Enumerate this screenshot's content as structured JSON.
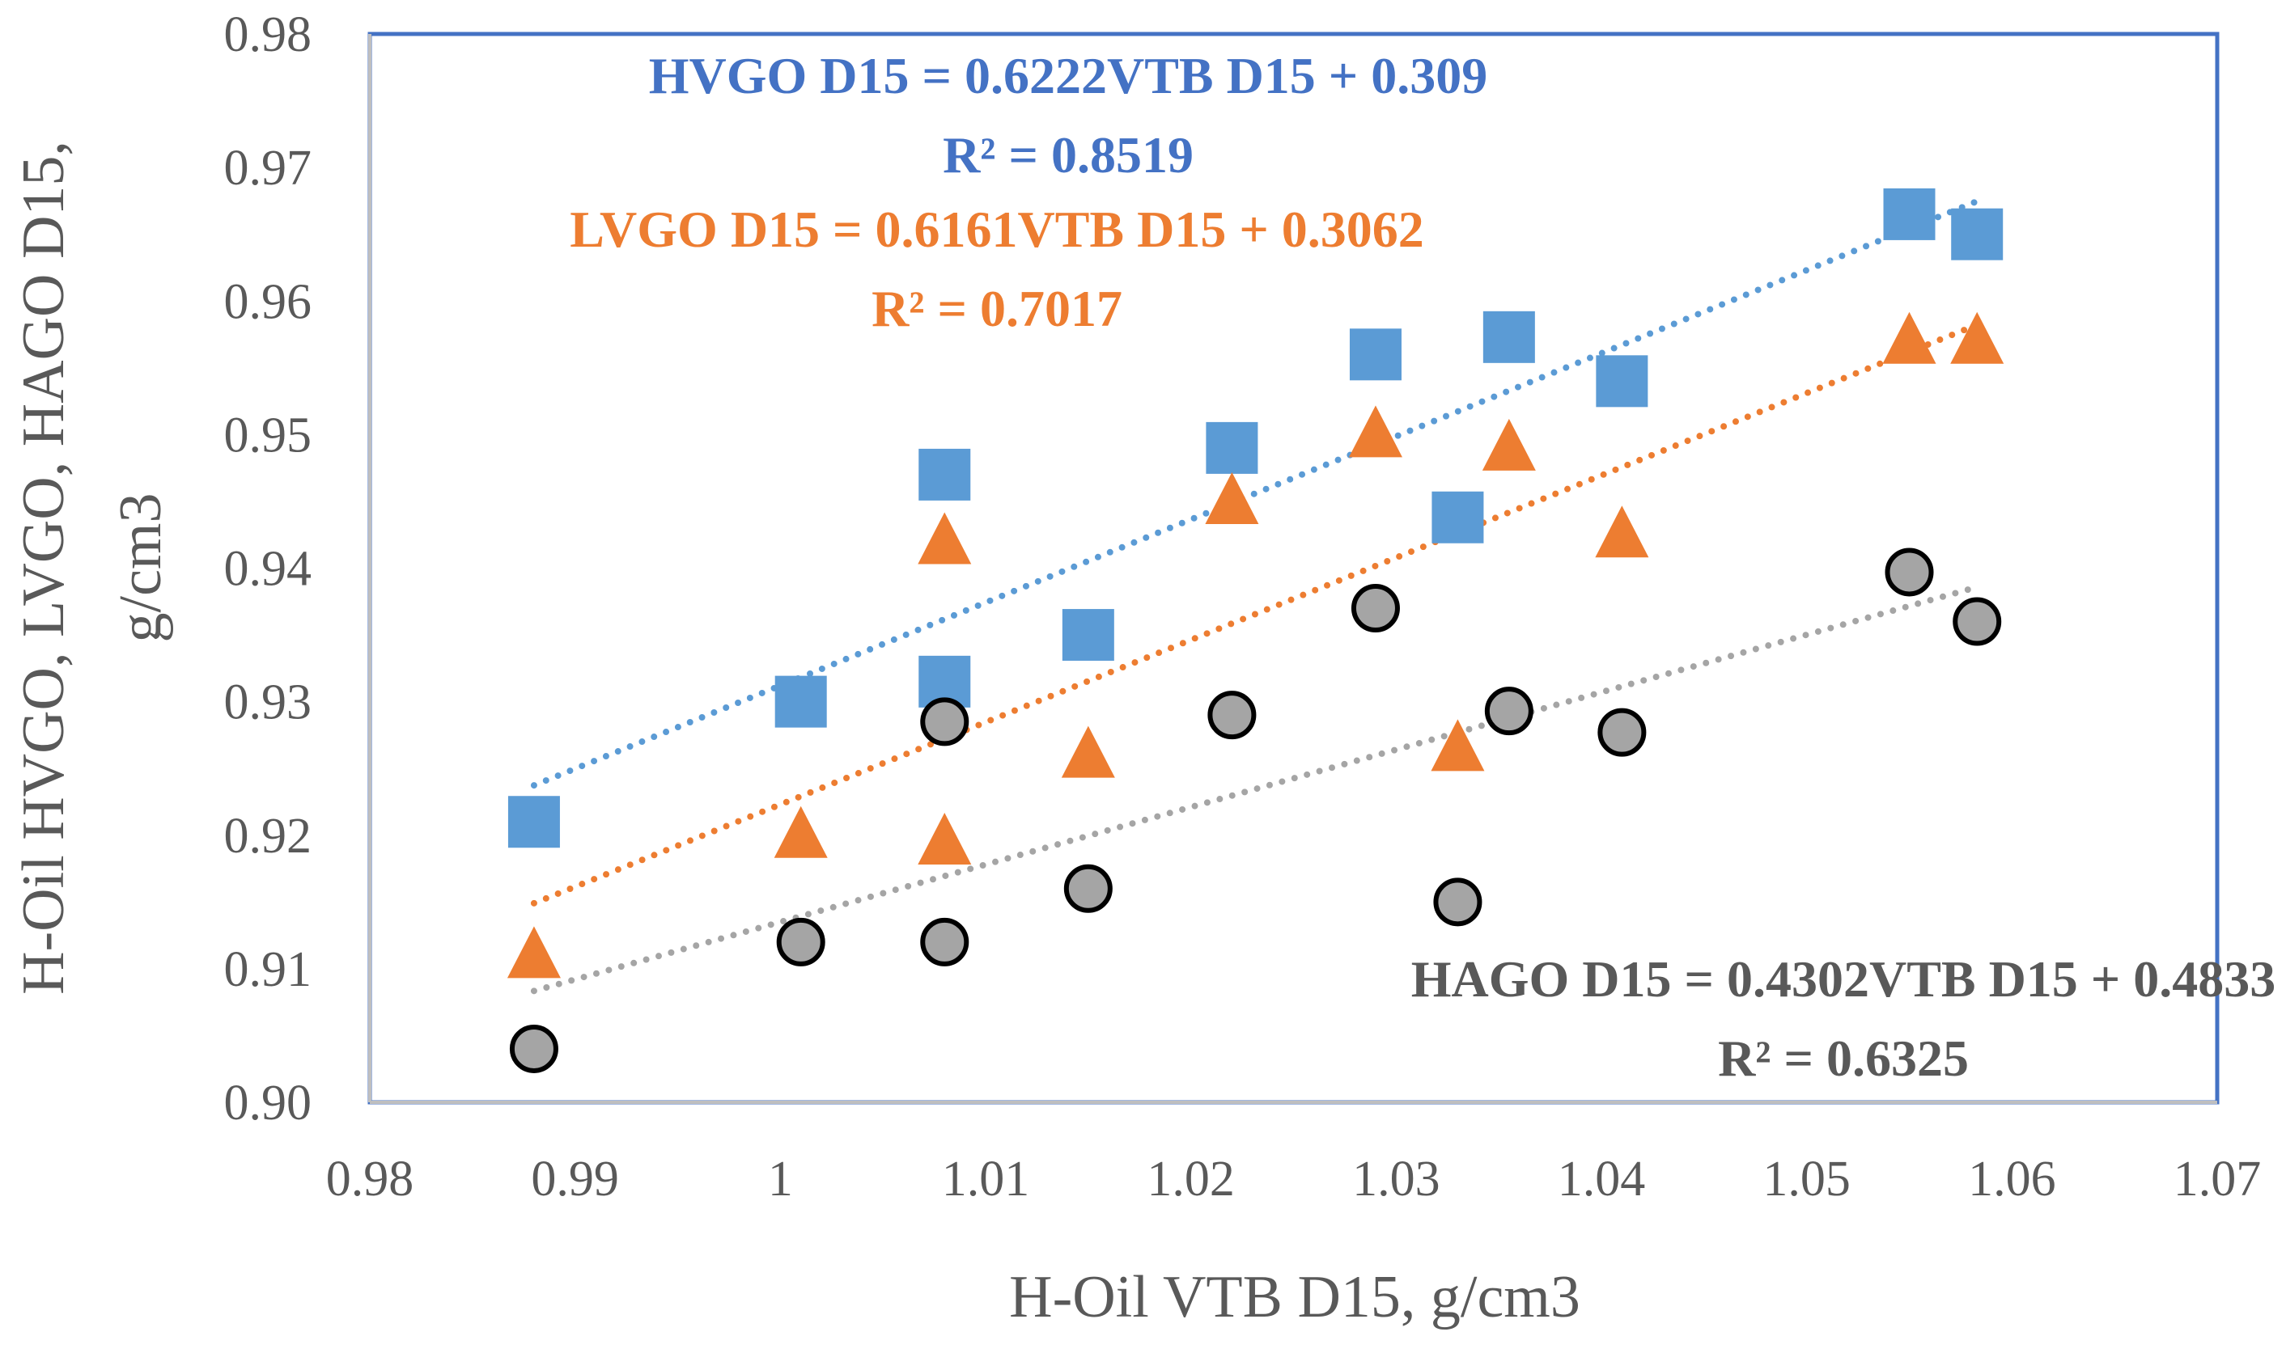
{
  "chart_data": {
    "type": "scatter",
    "title": "",
    "xlabel": "H-Oil VTB D15, g/cm3",
    "ylabel_lines": [
      "H-Oil HVGO, LVGO, HAGO D15,",
      "g/cm3"
    ],
    "xlim": [
      0.98,
      1.07
    ],
    "ylim": [
      0.9,
      0.98
    ],
    "x_ticks": [
      "0.98",
      "0.99",
      "1",
      "1.01",
      "1.02",
      "1.03",
      "1.04",
      "1.05",
      "1.06",
      "1.07"
    ],
    "y_ticks": [
      "0.90",
      "0.91",
      "0.92",
      "0.93",
      "0.94",
      "0.95",
      "0.96",
      "0.97",
      "0.98"
    ],
    "grid": false,
    "legend": "none",
    "series": [
      {
        "name": "HVGO",
        "marker": "square",
        "color": "#5B9BD5",
        "points": [
          [
            0.988,
            0.921
          ],
          [
            1.001,
            0.93
          ],
          [
            1.008,
            0.947
          ],
          [
            1.008,
            0.9315
          ],
          [
            1.015,
            0.935
          ],
          [
            1.022,
            0.949
          ],
          [
            1.029,
            0.956
          ],
          [
            1.033,
            0.9438
          ],
          [
            1.0355,
            0.9573
          ],
          [
            1.041,
            0.954
          ],
          [
            1.055,
            0.9665
          ],
          [
            1.0583,
            0.965
          ]
        ],
        "trendline": {
          "slope": 0.6222,
          "intercept": 0.309,
          "x_range": [
            0.988,
            1.0583
          ]
        },
        "equation": "HVGO D15 = 0.6222VTB D15 + 0.309",
        "r2": "R² = 0.8519"
      },
      {
        "name": "LVGO",
        "marker": "triangle",
        "color": "#ED7D31",
        "points": [
          [
            0.988,
            0.911
          ],
          [
            1.001,
            0.92
          ],
          [
            1.008,
            0.942
          ],
          [
            1.008,
            0.9195
          ],
          [
            1.015,
            0.926
          ],
          [
            1.022,
            0.945
          ],
          [
            1.029,
            0.95
          ],
          [
            1.033,
            0.9265
          ],
          [
            1.0355,
            0.949
          ],
          [
            1.041,
            0.9425
          ],
          [
            1.055,
            0.957
          ],
          [
            1.0583,
            0.957
          ]
        ],
        "trendline": {
          "slope": 0.6161,
          "intercept": 0.3062,
          "x_range": [
            0.988,
            1.0583
          ]
        },
        "equation": "LVGO D15 = 0.6161VTB D15 + 0.3062",
        "r2": "R² = 0.7017"
      },
      {
        "name": "HAGO",
        "marker": "circle",
        "color": "#A5A5A5",
        "points": [
          [
            0.988,
            0.904
          ],
          [
            1.001,
            0.912
          ],
          [
            1.008,
            0.912
          ],
          [
            1.008,
            0.9285
          ],
          [
            1.015,
            0.916
          ],
          [
            1.022,
            0.929
          ],
          [
            1.029,
            0.937
          ],
          [
            1.033,
            0.915
          ],
          [
            1.0355,
            0.9293
          ],
          [
            1.041,
            0.9277
          ],
          [
            1.055,
            0.9397
          ],
          [
            1.0583,
            0.936
          ]
        ],
        "trendline": {
          "slope": 0.4302,
          "intercept": 0.4833,
          "x_range": [
            0.988,
            1.0583
          ]
        },
        "equation": "HAGO D15 = 0.4302VTB D15 + 0.4833",
        "r2": "R² = 0.6325"
      }
    ],
    "colors": {
      "hvgo_text": "#4472C4",
      "lvgo_text": "#ED7D31",
      "hago_text": "#595959",
      "plot_border": "#4472C4",
      "axis": "#BFBFBF"
    }
  }
}
